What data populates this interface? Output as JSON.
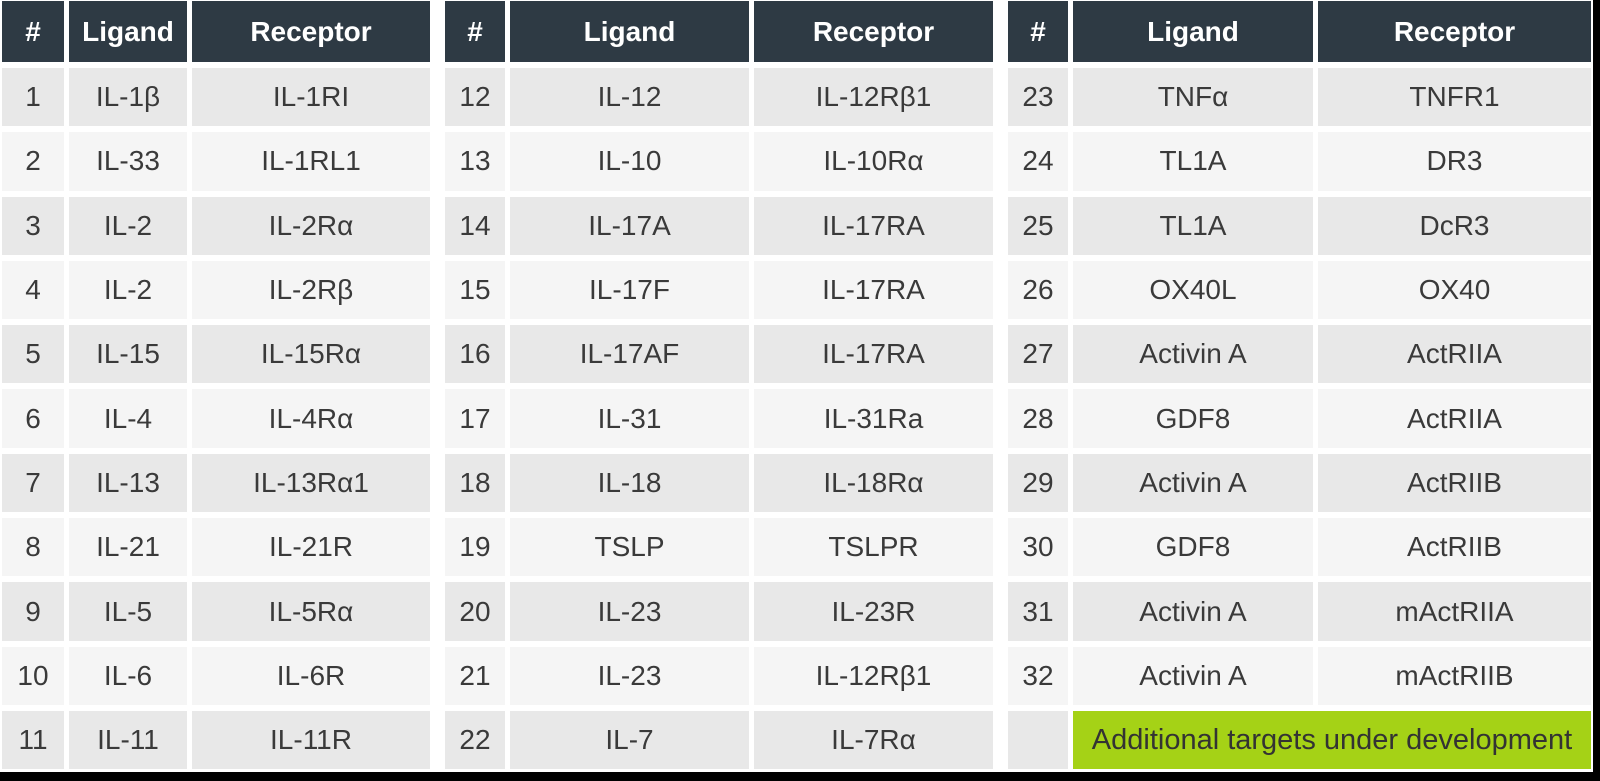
{
  "table": {
    "columns": [
      "#",
      "Ligand",
      "Receptor"
    ],
    "groups": [
      {
        "rows": [
          [
            "1",
            "IL-1β",
            "IL-1RI"
          ],
          [
            "2",
            "IL-33",
            "IL-1RL1"
          ],
          [
            "3",
            "IL-2",
            "IL-2Rα"
          ],
          [
            "4",
            "IL-2",
            "IL-2Rβ"
          ],
          [
            "5",
            "IL-15",
            "IL-15Rα"
          ],
          [
            "6",
            "IL-4",
            "IL-4Rα"
          ],
          [
            "7",
            "IL-13",
            "IL-13Rα1"
          ],
          [
            "8",
            "IL-21",
            "IL-21R"
          ],
          [
            "9",
            "IL-5",
            "IL-5Rα"
          ],
          [
            "10",
            "IL-6",
            "IL-6R"
          ],
          [
            "11",
            "IL-11",
            "IL-11R"
          ]
        ]
      },
      {
        "rows": [
          [
            "12",
            "IL-12",
            "IL-12Rβ1"
          ],
          [
            "13",
            "IL-10",
            "IL-10Rα"
          ],
          [
            "14",
            "IL-17A",
            "IL-17RA"
          ],
          [
            "15",
            "IL-17F",
            "IL-17RA"
          ],
          [
            "16",
            "IL-17AF",
            "IL-17RA"
          ],
          [
            "17",
            "IL-31",
            "IL-31Ra"
          ],
          [
            "18",
            "IL-18",
            "IL-18Rα"
          ],
          [
            "19",
            "TSLP",
            "TSLPR"
          ],
          [
            "20",
            "IL-23",
            "IL-23R"
          ],
          [
            "21",
            "IL-23",
            "IL-12Rβ1"
          ],
          [
            "22",
            "IL-7",
            "IL-7Rα"
          ]
        ]
      },
      {
        "rows": [
          [
            "23",
            "TNFα",
            "TNFR1"
          ],
          [
            "24",
            "TL1A",
            "DR3"
          ],
          [
            "25",
            "TL1A",
            "DcR3"
          ],
          [
            "26",
            "OX40L",
            "OX40"
          ],
          [
            "27",
            "Activin A",
            "ActRIIA"
          ],
          [
            "28",
            "GDF8",
            "ActRIIA"
          ],
          [
            "29",
            "Activin A",
            "ActRIIB"
          ],
          [
            "30",
            "GDF8",
            "ActRIIB"
          ],
          [
            "31",
            "Activin A",
            "mActRIIA"
          ],
          [
            "32",
            "Activin A",
            "mActRIIB"
          ]
        ],
        "footer": {
          "number": "",
          "label": "Additional targets under development"
        }
      }
    ]
  },
  "colors": {
    "header_bg": "#2e3a44",
    "header_text": "#ffffff",
    "row_odd": "#e8e8e8",
    "row_even": "#f5f5f5",
    "cell_text": "#3a3a3a",
    "banner_bg": "#a5d216",
    "banner_text": "#333333",
    "frame": "#000000",
    "page_bg": "#ffffff"
  }
}
